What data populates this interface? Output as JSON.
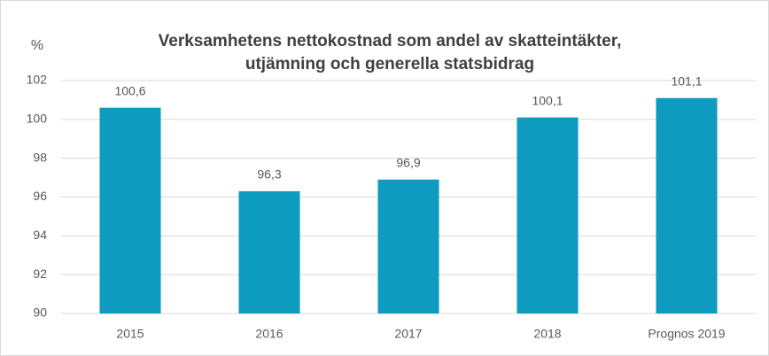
{
  "chart_data": {
    "type": "bar",
    "title": [
      "Verksamhetens nettokostnad som andel av skatteintäkter,",
      "utjämning och generella statsbidrag"
    ],
    "y_label": "%",
    "categories": [
      "2015",
      "2016",
      "2017",
      "2018",
      "Prognos 2019"
    ],
    "values": [
      100.6,
      96.3,
      96.9,
      100.1,
      101.1
    ],
    "value_labels": [
      "100,6",
      "96,3",
      "96,9",
      "100,1",
      "101,1"
    ],
    "color": "#0e9bc0",
    "ylim": [
      90,
      102
    ],
    "yticks": [
      90,
      92,
      94,
      96,
      98,
      100,
      102
    ],
    "grid": true
  }
}
